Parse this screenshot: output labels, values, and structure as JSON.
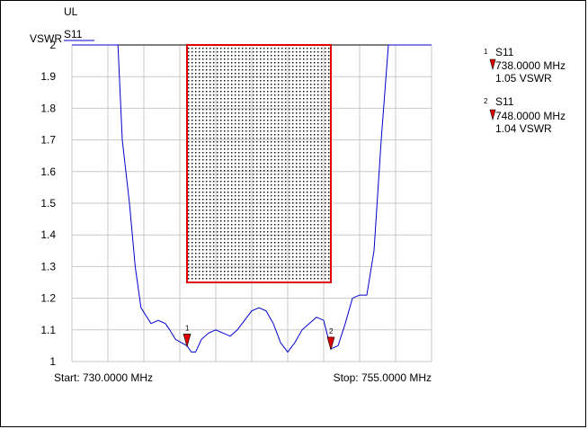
{
  "chart_data": {
    "type": "line",
    "y_unit": "VSWR",
    "trace_group": "UL",
    "series": [
      {
        "name": "S11",
        "color": "#0000cc",
        "x": [
          730.0,
          731.5,
          732.7,
          733.2,
          733.5,
          734.0,
          734.4,
          734.8,
          735.5,
          736.0,
          736.5,
          736.8,
          737.2,
          737.6,
          738.0,
          738.3,
          738.6,
          739.0,
          739.5,
          740.0,
          740.5,
          741.0,
          741.5,
          742.0,
          742.5,
          743.0,
          743.5,
          744.0,
          744.5,
          745.0,
          745.5,
          746.0,
          746.5,
          747.0,
          747.5,
          748.0,
          748.5,
          749.0,
          749.5,
          750.0,
          750.5,
          751.0,
          751.5,
          752.0,
          753.0,
          754.0,
          755.0
        ],
        "values": [
          2.0,
          2.0,
          2.0,
          2.0,
          1.7,
          1.5,
          1.3,
          1.17,
          1.12,
          1.13,
          1.12,
          1.1,
          1.07,
          1.06,
          1.05,
          1.03,
          1.03,
          1.07,
          1.09,
          1.1,
          1.09,
          1.08,
          1.1,
          1.13,
          1.16,
          1.17,
          1.16,
          1.12,
          1.06,
          1.03,
          1.06,
          1.1,
          1.12,
          1.14,
          1.13,
          1.04,
          1.05,
          1.12,
          1.2,
          1.21,
          1.21,
          1.35,
          1.7,
          2.0,
          2.0,
          2.0,
          2.0
        ]
      }
    ],
    "ylim": [
      1,
      2
    ],
    "xlim": [
      730.0,
      755.0
    ],
    "yticks": [
      "2",
      "1.9",
      "1.8",
      "1.7",
      "1.6",
      "1.5",
      "1.4",
      "1.3",
      "1.2",
      "1.1",
      "1"
    ],
    "start_label": "Start: 730.0000 MHz",
    "stop_label": "Stop: 755.0000 MHz",
    "grid": true,
    "legend_position": "right",
    "limit_region": {
      "x_start": 738.0,
      "x_end": 748.0,
      "y_min": 1.25,
      "y_max": 2.0,
      "border_color": "#e00000"
    },
    "markers": [
      {
        "id": "1",
        "trace": "S11",
        "x": 738.0,
        "y": 1.05,
        "freq_text": "738.0000 MHz",
        "value_text": "1.05 VSWR",
        "color": "#e00000"
      },
      {
        "id": "2",
        "trace": "S11",
        "x": 748.0,
        "y": 1.04,
        "freq_text": "748.0000 MHz",
        "value_text": "1.04 VSWR",
        "color": "#e00000"
      }
    ]
  }
}
